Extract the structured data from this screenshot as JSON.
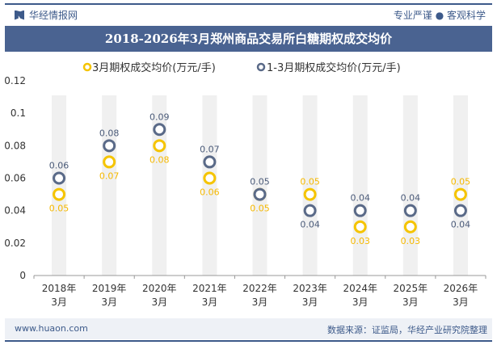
{
  "header": {
    "brand": "华经情报网",
    "slogan": "专业严谨 ● 客观科学",
    "title": "2018-2026年3月郑州商品交易所白糖期权成交均价"
  },
  "footer": {
    "website": "www.huaon.com",
    "source": "数据来源：证监局，华经产业研究院整理"
  },
  "watermark": "华经产业研究院",
  "chart_data": {
    "type": "scatter",
    "title": "2018-2026年3月郑州商品交易所白糖期权成交均价",
    "categories": [
      [
        "2018年",
        "3月"
      ],
      [
        "2019年",
        "3月"
      ],
      [
        "2020年",
        "3月"
      ],
      [
        "2021年",
        "3月"
      ],
      [
        "2022年",
        "3月"
      ],
      [
        "2023年",
        "3月"
      ],
      [
        "2024年",
        "3月"
      ],
      [
        "2025年",
        "3月"
      ],
      [
        "2026年",
        "3月"
      ]
    ],
    "yticks": [
      "0",
      "0.02",
      "0.04",
      "0.06",
      "0.08",
      "0.1",
      "0.12"
    ],
    "ylim": [
      0,
      0.12
    ],
    "legend_position": "top",
    "series": [
      {
        "name": "3月期权成交均价(万元/手)",
        "color": "#f5c400",
        "values": [
          0.05,
          0.07,
          0.08,
          0.06,
          0.05,
          0.05,
          0.03,
          0.03,
          0.05
        ]
      },
      {
        "name": "1-3月期权成交均价(万元/手)",
        "color": "#5a6a88",
        "values": [
          0.06,
          0.08,
          0.09,
          0.07,
          0.05,
          0.04,
          0.04,
          0.04,
          0.04
        ]
      }
    ]
  }
}
